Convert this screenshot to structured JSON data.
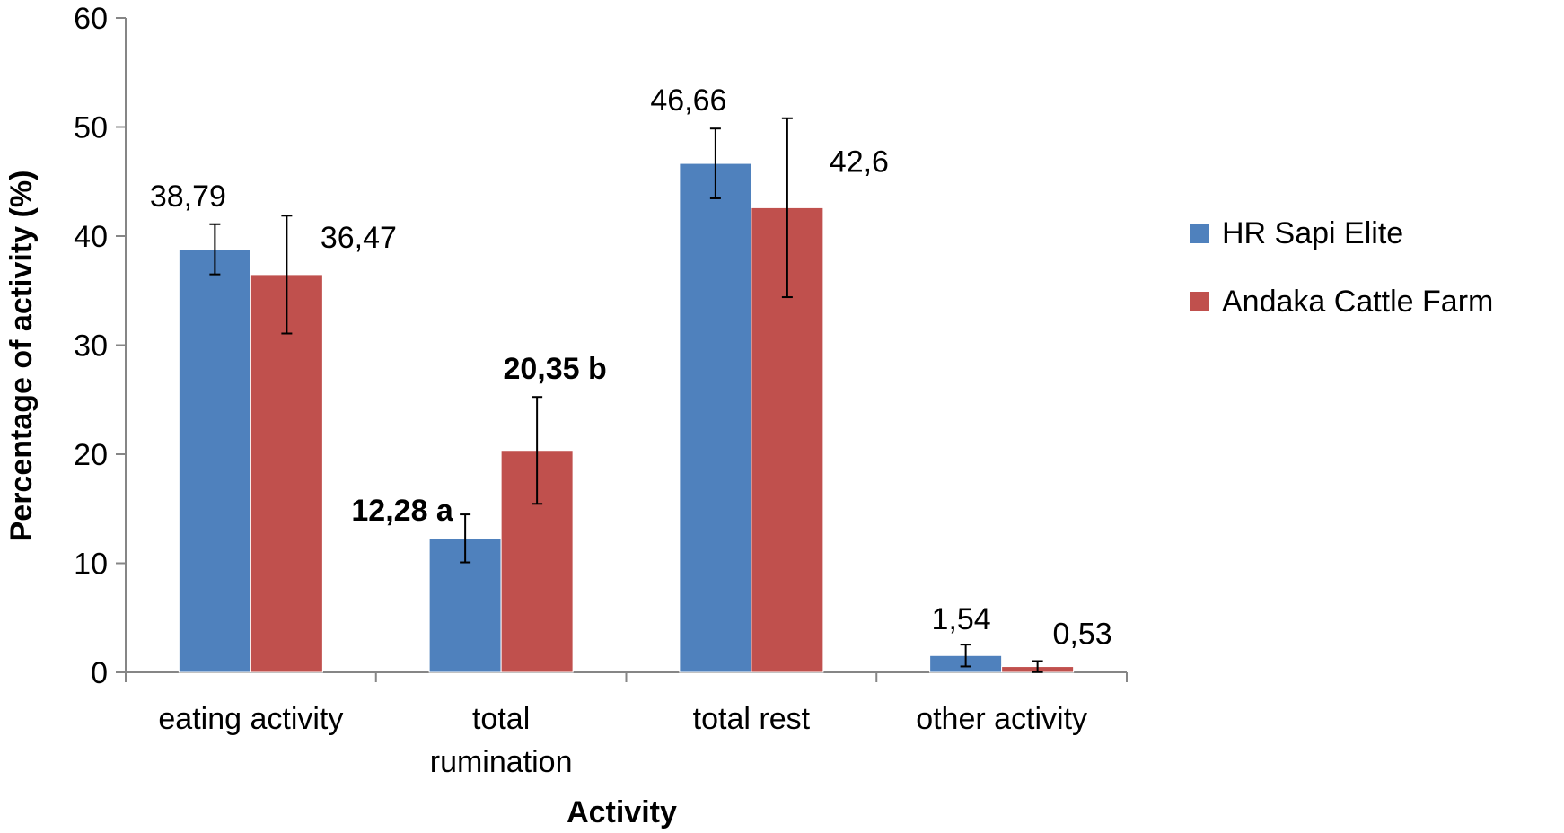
{
  "chart_data": {
    "type": "bar",
    "title": "",
    "xlabel": "Activity",
    "ylabel": "Percentage of activity (%)",
    "ylim": [
      0,
      60
    ],
    "yticks": [
      0,
      10,
      20,
      30,
      40,
      50,
      60
    ],
    "grid": false,
    "legend_position": "right",
    "categories": [
      [
        "eating activity"
      ],
      [
        "total",
        "rumination"
      ],
      [
        "total rest"
      ],
      [
        "other activity"
      ]
    ],
    "series": [
      {
        "name": "HR Sapi Elite",
        "color": "#4F81BD",
        "values": [
          38.79,
          12.28,
          46.66,
          1.54
        ],
        "errors": [
          2.3,
          2.2,
          3.2,
          1.0
        ],
        "labels": [
          "38,79",
          "12,28 a",
          "46,66",
          "1,54"
        ],
        "label_bold": [
          false,
          true,
          false,
          false
        ]
      },
      {
        "name": "Andaka Cattle Farm",
        "color": "#C0504D",
        "values": [
          36.47,
          20.35,
          42.6,
          0.53
        ],
        "errors": [
          5.4,
          4.9,
          8.2,
          0.5
        ],
        "labels": [
          "36,47",
          "20,35 b",
          "42,6",
          "0,53"
        ],
        "label_bold": [
          false,
          true,
          false,
          false
        ]
      }
    ]
  }
}
